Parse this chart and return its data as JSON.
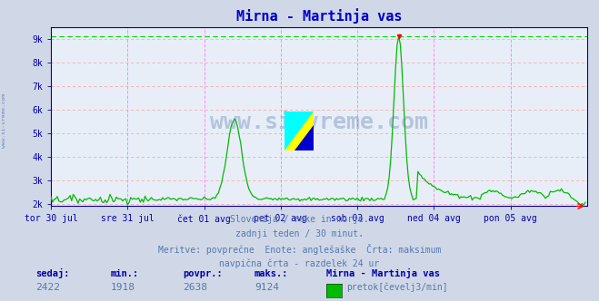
{
  "title": "Mirna - Martinja vas",
  "title_color": "#0000cc",
  "bg_color": "#d0d8e8",
  "plot_bg_color": "#e8eef8",
  "grid_color_h": "#ffaaaa",
  "grid_color_v": "#ff88ff",
  "max_line_color": "#00dd00",
  "max_line_value": 9124,
  "ylabel_ticks": [
    "2k",
    "3k",
    "4k",
    "5k",
    "6k",
    "7k",
    "8k",
    "9k"
  ],
  "ytick_values": [
    2000,
    3000,
    4000,
    5000,
    6000,
    7000,
    8000,
    9000
  ],
  "ylim": [
    1900,
    9500
  ],
  "xlabel_ticks": [
    "tor 30 jul",
    "sre 31 jul",
    "čet 01 avg",
    "pet 02 avg",
    "sob 03 avg",
    "ned 04 avg",
    "pon 05 avg"
  ],
  "line_color": "#00bb00",
  "watermark_color": "#5577aa",
  "axis_color": "#0000aa",
  "tick_color": "#0000aa",
  "sedaj": 2422,
  "min_val": 1918,
  "povpr": 2638,
  "maks": 9124,
  "station": "Mirna - Martinja vas",
  "legend_label": "pretok[čevelj3/min]",
  "footer_lines": [
    "Slovenija / reke in morje.",
    "zadnji teden / 30 minut.",
    "Meritve: povprečne  Enote: anglešaške  Črta: maksimum",
    "navpična črta - razdelek 24 ur"
  ],
  "n_points": 336,
  "base_value": 2200,
  "peak_index": 218,
  "peak_value": 9124,
  "secondary_peak_index": 115,
  "secondary_peak_value": 5600
}
